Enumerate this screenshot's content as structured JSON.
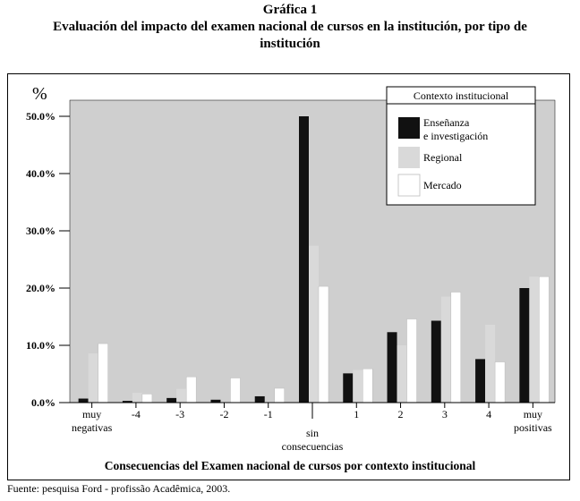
{
  "header": {
    "label": "Gráfica 1",
    "subtitle": "Evaluación del impacto del examen nacional de cursos en la institución, por tipo de institución"
  },
  "footer": {
    "source": "Fuente: pesquisa Ford - profissão Acadêmica, 2003."
  },
  "chart_data": {
    "type": "bar",
    "ylabel": "%",
    "xlabel": "Consecuencias del Examen nacional de cursos por contexto institucional",
    "ylim": [
      0,
      50
    ],
    "y_ticks": [
      "0.0%",
      "10.0%",
      "20.0%",
      "30.0%",
      "40.0%",
      "50.0%"
    ],
    "categories": [
      "muy negativas",
      "-4",
      "-3",
      "-2",
      "-1",
      "sin consecuencias",
      "1",
      "2",
      "3",
      "4",
      "muy positivas"
    ],
    "legend": {
      "title": "Contexto institucional",
      "placement": "top-right"
    },
    "series": [
      {
        "name": "Enseñanza e investigación",
        "color": "#111111",
        "values": [
          0.7,
          0.3,
          0.8,
          0.5,
          1.1,
          50.0,
          5.1,
          12.3,
          14.3,
          7.6,
          20.0
        ]
      },
      {
        "name": "Regional",
        "color": "#d9d9d9",
        "values": [
          8.6,
          1.7,
          2.4,
          0.2,
          0.2,
          27.4,
          5.7,
          10.0,
          18.5,
          13.6,
          22.0
        ]
      },
      {
        "name": "Mercado",
        "color": "#ffffff",
        "values": [
          10.3,
          1.5,
          4.5,
          4.3,
          2.5,
          20.3,
          5.9,
          14.6,
          19.3,
          7.1,
          22.0
        ]
      }
    ],
    "colors": {
      "plot_background": "#cfcfcf",
      "bar_stroke": "#bbbbbb"
    }
  }
}
